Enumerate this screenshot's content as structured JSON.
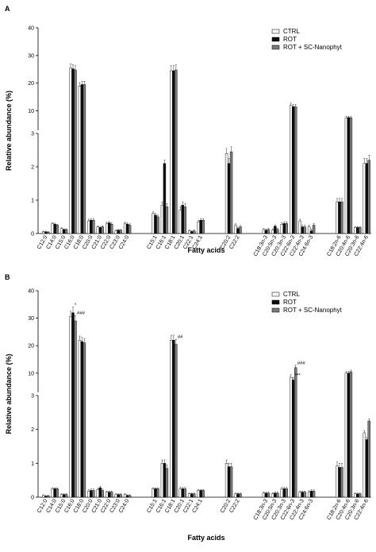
{
  "figure": {
    "legend": {
      "entries": [
        {
          "label": "CTRL",
          "color": "#f4f4f4"
        },
        {
          "label": "ROT",
          "color": "#0d0d0d"
        },
        {
          "label": "ROT + SC-Nanophyt",
          "color": "#7a7a7a"
        }
      ],
      "placement": "top-right"
    }
  },
  "chart_data": [
    {
      "panel": "A",
      "type": "bar",
      "ylabel": "Relative abundance (%)",
      "xlabel": "Fatty acids",
      "y_axis": {
        "broken": true,
        "lower_range": [
          0,
          3
        ],
        "lower_ticks": [
          0,
          1,
          2,
          3
        ],
        "upper_range": [
          3,
          40
        ],
        "upper_ticks": [
          10,
          20,
          30,
          40
        ]
      },
      "groups": [
        [
          "C12:0",
          "C14:0",
          "C15:0",
          "C16:0",
          "C18:0",
          "C20:0",
          "C21:0",
          "C22:0",
          "C23:0",
          "C24:0"
        ],
        [
          "C15:1",
          "C16:1",
          "C18:1",
          "C20:1",
          "C22:1",
          "C24:1"
        ],
        [
          "C20:2",
          "C22:2"
        ],
        [
          "C18:3n-3",
          "C20:5n-3",
          "C20:3n-3",
          "C22:6n-3",
          "C22:4n-3",
          "C24:6n-3"
        ],
        [
          "C18:2n-6",
          "C20:4n-6",
          "C20:3n-6",
          "C22:4n-6"
        ]
      ],
      "series": [
        {
          "name": "CTRL",
          "values": [
            0.05,
            0.3,
            0.15,
            25.5,
            19,
            0.38,
            0.2,
            0.3,
            0.08,
            0.3,
            0.6,
            0.85,
            24.5,
            0.7,
            0.08,
            0.35,
            2.4,
            0.25,
            0.12,
            0.1,
            0.28,
            12,
            0.38,
            0.2,
            0.95,
            7.5,
            0.18,
            2.1
          ]
        },
        {
          "name": "ROT",
          "values": [
            0.05,
            0.28,
            0.12,
            25.2,
            19.5,
            0.4,
            0.18,
            0.32,
            0.1,
            0.28,
            0.55,
            2.1,
            24.5,
            0.85,
            0.06,
            0.4,
            2.1,
            0.15,
            0.1,
            0.22,
            0.3,
            11.5,
            0.2,
            0.08,
            0.95,
            7.6,
            0.18,
            2.1
          ]
        },
        {
          "name": "ROT + SC-Nanophyt",
          "values": [
            0.04,
            0.25,
            0.12,
            24.8,
            19.5,
            0.4,
            0.2,
            0.28,
            0.1,
            0.25,
            0.5,
            0.8,
            24.8,
            0.8,
            0.08,
            0.4,
            2.45,
            0.2,
            0.12,
            0.12,
            0.3,
            11.5,
            0.2,
            0.25,
            0.95,
            7.5,
            0.18,
            2.2
          ]
        }
      ],
      "errors": [
        0.02,
        0.03,
        0.02,
        1.5,
        1.2,
        0.05,
        0.03,
        0.04,
        0.02,
        0.04,
        0.05,
        0.1,
        1.8,
        0.1,
        0.02,
        0.05,
        0.15,
        0.04,
        0.03,
        0.04,
        0.05,
        0.8,
        0.05,
        0.05,
        0.1,
        0.5,
        0.03,
        0.15
      ],
      "annotations": []
    },
    {
      "panel": "B",
      "type": "bar",
      "ylabel": "Relative abundance (%)",
      "xlabel": "Fatty acids",
      "y_axis": {
        "broken": true,
        "lower_range": [
          0,
          3
        ],
        "lower_ticks": [
          0,
          1,
          2,
          3
        ],
        "upper_range": [
          3,
          40
        ],
        "upper_ticks": [
          10,
          20,
          30,
          40
        ]
      },
      "groups": [
        [
          "C12:0",
          "C14:0",
          "C15:0",
          "C16:0",
          "C18:0",
          "C20:0",
          "C21:0",
          "C22:0",
          "C23:0",
          "C24:0"
        ],
        [
          "C15:1",
          "C16:1",
          "C18:1",
          "C20:1",
          "C22:1",
          "C24:1"
        ],
        [
          "C20:2",
          "C22:2"
        ],
        [
          "C18:3n-3",
          "C20:5n-3",
          "C20:3n-3",
          "C22:6n-3",
          "C22:4n-3",
          "C24:6n-3"
        ],
        [
          "C18:2n-6",
          "C20:4n-6",
          "C20:3n-6",
          "C22:4n-6"
        ]
      ],
      "series": [
        {
          "name": "CTRL",
          "values": [
            0.05,
            0.25,
            0.08,
            30.5,
            22,
            0.18,
            0.22,
            0.15,
            0.08,
            0.08,
            0.25,
            1.0,
            22,
            0.25,
            0.1,
            0.2,
            1.0,
            0.1,
            0.12,
            0.1,
            0.25,
            8.5,
            0.15,
            0.15,
            0.92,
            10,
            0.1,
            1.9
          ]
        },
        {
          "name": "ROT",
          "values": [
            0.03,
            0.25,
            0.08,
            32,
            21.5,
            0.2,
            0.28,
            0.15,
            0.08,
            0.05,
            0.25,
            1.0,
            22,
            0.25,
            0.1,
            0.2,
            0.9,
            0.1,
            0.12,
            0.12,
            0.25,
            7.5,
            0.15,
            0.18,
            0.88,
            10,
            0.1,
            1.7
          ]
        },
        {
          "name": "ROT + SC-Nanophyt",
          "values": [
            0.04,
            0.25,
            0.08,
            29,
            21,
            0.2,
            0.2,
            0.15,
            0.08,
            0.05,
            0.25,
            0.85,
            20.5,
            0.25,
            0.1,
            0.2,
            0.9,
            0.1,
            0.12,
            0.12,
            0.25,
            12,
            0.15,
            0.18,
            0.88,
            10.5,
            0.1,
            2.25
          ]
        }
      ],
      "errors": [
        0.02,
        0.03,
        0.02,
        2.0,
        1.5,
        0.04,
        0.04,
        0.03,
        0.02,
        0.02,
        0.03,
        0.1,
        1.8,
        0.04,
        0.02,
        0.03,
        0.1,
        0.02,
        0.03,
        0.03,
        0.04,
        0.9,
        0.03,
        0.04,
        0.12,
        0.6,
        0.02,
        0.06
      ],
      "annotations": [
        {
          "category": "C16:0",
          "series": "ROT",
          "text": "*"
        },
        {
          "category": "C16:0",
          "series": "ROT + SC-Nanophyt",
          "text": "###"
        },
        {
          "category": "C18:1",
          "series": "ROT + SC-Nanophyt",
          "text": "##"
        },
        {
          "category": "C22:6n-3",
          "series": "ROT",
          "text": "***"
        },
        {
          "category": "C22:6n-3",
          "series": "ROT + SC-Nanophyt",
          "text": "###"
        }
      ]
    }
  ]
}
